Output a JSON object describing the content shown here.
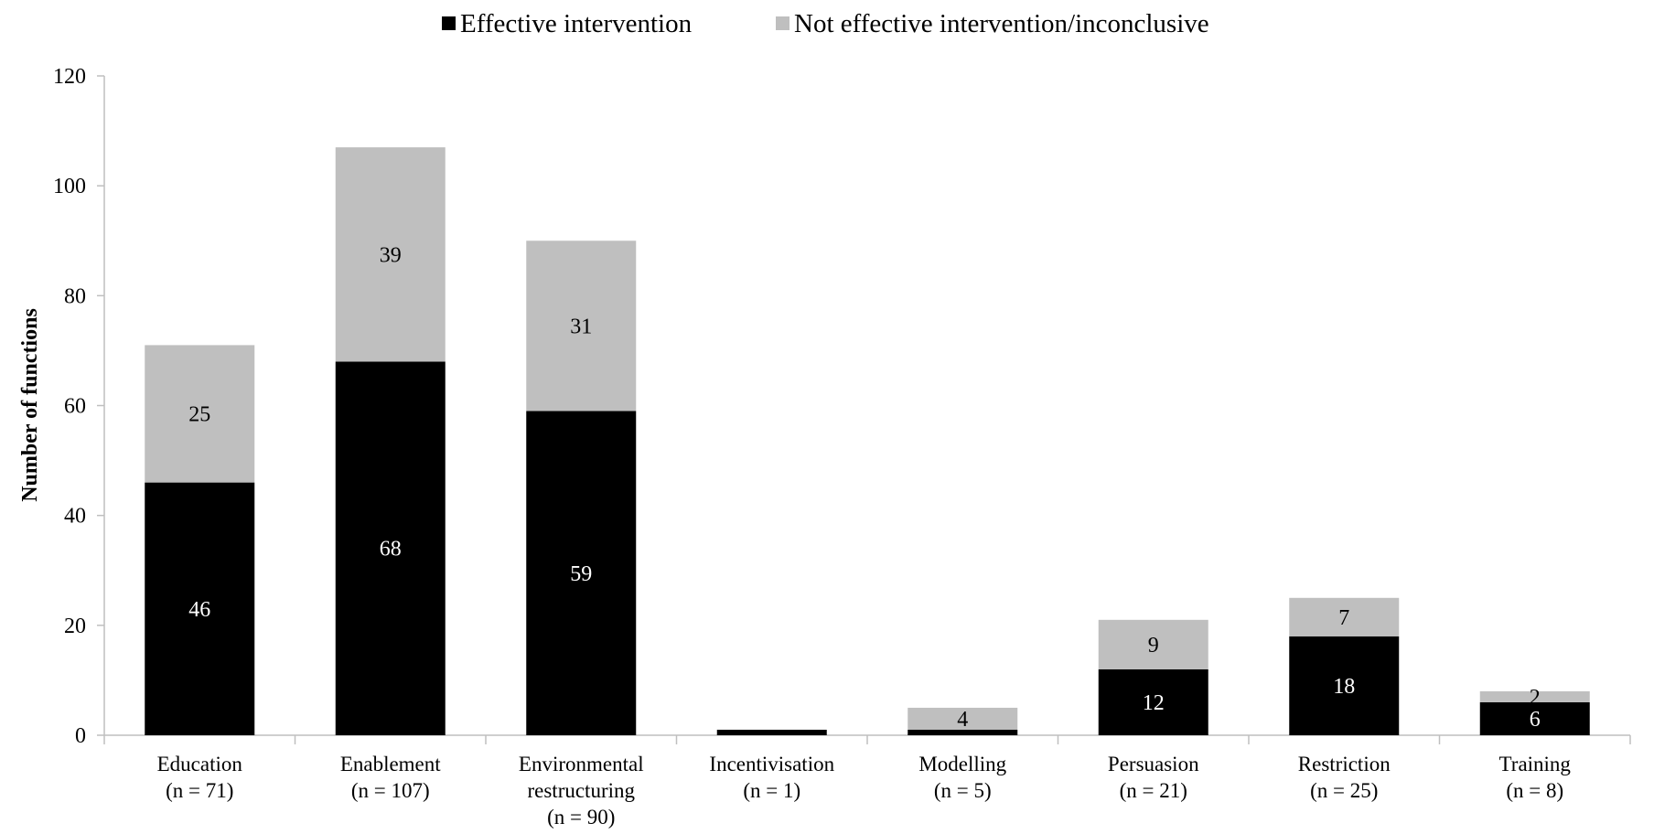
{
  "chart_data": {
    "type": "bar",
    "stacked": true,
    "title": "",
    "xlabel": "",
    "ylabel": "Number of functions",
    "ylim": [
      0,
      120
    ],
    "yticks": [
      0,
      20,
      40,
      60,
      80,
      100,
      120
    ],
    "grid": false,
    "legend_position": "top-center",
    "categories": [
      [
        "Education",
        "(n = 71)"
      ],
      [
        "Enablement",
        "(n = 107)"
      ],
      [
        "Environmental",
        "restructuring",
        "(n = 90)"
      ],
      [
        "Incentivisation",
        "(n = 1)"
      ],
      [
        "Modelling",
        "(n = 5)"
      ],
      [
        "Persuasion",
        "(n = 21)"
      ],
      [
        "Restriction",
        "(n = 25)"
      ],
      [
        "Training",
        "(n = 8)"
      ]
    ],
    "series": [
      {
        "name": "Effective intervention",
        "color": "#000000",
        "label_color": "#ffffff",
        "values": [
          46,
          68,
          59,
          1,
          1,
          12,
          18,
          6
        ],
        "labels": [
          "46",
          "68",
          "59",
          "",
          "",
          "12",
          "18",
          "6"
        ]
      },
      {
        "name": "Not effective intervention/inconclusive",
        "color": "#bfbfbf",
        "label_color": "#000000",
        "values": [
          25,
          39,
          31,
          0,
          4,
          9,
          7,
          2
        ],
        "labels": [
          "25",
          "39",
          "31",
          "",
          "4",
          "9",
          "7",
          "2"
        ]
      }
    ]
  }
}
